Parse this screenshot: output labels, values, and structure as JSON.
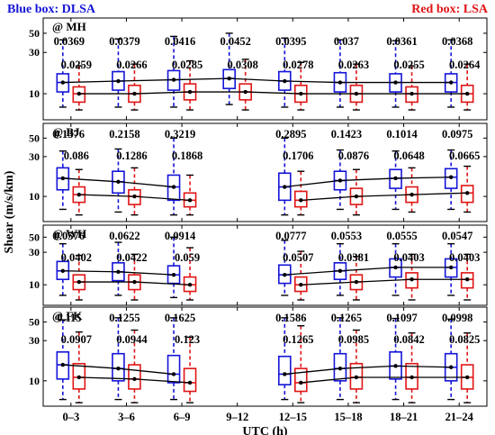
{
  "header": {
    "blue_label": "Blue box: DLSA",
    "red_label": "Red box: LSA"
  },
  "colors": {
    "blue": "#1515d8",
    "red": "#e01515",
    "line": "#000000"
  },
  "chart_data": {
    "type": "box",
    "ylabel": "Shear (m/s/km)",
    "xlabel": "UTC (h)",
    "categories": [
      "0–3",
      "3–6",
      "6–9",
      "9–12",
      "12–15",
      "15–18",
      "18–21",
      "21–24"
    ],
    "y_scale": "log",
    "y_ticks": [
      10,
      30,
      50
    ],
    "ylim": [
      5,
      75
    ],
    "series": [
      {
        "name": "DLSA",
        "color": "blue"
      },
      {
        "name": "LSA",
        "color": "red"
      }
    ],
    "panels": [
      {
        "label": "@ MH",
        "blue_labels": [
          "0.0369",
          "0.0379",
          "0.0416",
          "0.0452",
          "0.0395",
          "0.037",
          "0.0361",
          "0.0368"
        ],
        "red_labels": [
          "0.0259",
          "0.0266",
          "0.0285",
          "0.0308",
          "0.0278",
          "0.0263",
          "0.0255",
          "0.0264"
        ],
        "blue": [
          {
            "wl": 7,
            "q1": 10.5,
            "med": 13.5,
            "q3": 17,
            "wh": 42
          },
          {
            "wl": 7,
            "q1": 11,
            "med": 14,
            "q3": 18,
            "wh": 43
          },
          {
            "wl": 7,
            "q1": 11,
            "med": 14.5,
            "q3": 18.5,
            "wh": 46
          },
          {
            "wl": 7.5,
            "q1": 11.5,
            "med": 15,
            "q3": 19,
            "wh": 50
          },
          {
            "wl": 7,
            "q1": 11,
            "med": 14,
            "q3": 18,
            "wh": 44
          },
          {
            "wl": 7,
            "q1": 10.5,
            "med": 13.5,
            "q3": 17.5,
            "wh": 42
          },
          {
            "wl": 7,
            "q1": 10.5,
            "med": 13.5,
            "q3": 17,
            "wh": 41
          },
          {
            "wl": 7,
            "q1": 10.5,
            "med": 13.5,
            "q3": 17,
            "wh": 42
          }
        ],
        "red": [
          {
            "wl": 6.5,
            "q1": 8,
            "med": 10,
            "q3": 12,
            "wh": 21
          },
          {
            "wl": 6.5,
            "q1": 8,
            "med": 10,
            "q3": 12.5,
            "wh": 22
          },
          {
            "wl": 6.5,
            "q1": 8.5,
            "med": 10.5,
            "q3": 13,
            "wh": 24
          },
          {
            "wl": 6.5,
            "q1": 8.5,
            "med": 10.5,
            "q3": 13,
            "wh": 25
          },
          {
            "wl": 6.5,
            "q1": 8,
            "med": 10,
            "q3": 12.5,
            "wh": 23
          },
          {
            "wl": 6.5,
            "q1": 8,
            "med": 10,
            "q3": 12.5,
            "wh": 22
          },
          {
            "wl": 6.5,
            "q1": 8,
            "med": 10,
            "q3": 12,
            "wh": 21
          },
          {
            "wl": 6.5,
            "q1": 8,
            "med": 10,
            "q3": 12.5,
            "wh": 22
          }
        ]
      },
      {
        "label": "@ BJ",
        "blue_labels": [
          "0.1376",
          "0.2158",
          "0.3219",
          "",
          "0.2895",
          "0.1423",
          "0.1014",
          "0.0975"
        ],
        "red_labels": [
          "0.086",
          "0.1286",
          "0.1868",
          "",
          "0.1706",
          "0.0876",
          "0.0648",
          "0.0665"
        ],
        "blue": [
          {
            "wl": 7,
            "q1": 12,
            "med": 16.5,
            "q3": 22,
            "wh": 35
          },
          {
            "wl": 6.5,
            "q1": 11,
            "med": 15,
            "q3": 20,
            "wh": 37
          },
          {
            "wl": 6,
            "q1": 9,
            "med": 13,
            "q3": 18,
            "wh": 50
          },
          null,
          {
            "wl": 6,
            "q1": 9,
            "med": 13,
            "q3": 19,
            "wh": 50
          },
          {
            "wl": 7,
            "q1": 12,
            "med": 15.5,
            "q3": 20,
            "wh": 36
          },
          {
            "wl": 7,
            "q1": 12.5,
            "med": 16.5,
            "q3": 21,
            "wh": 35
          },
          {
            "wl": 7,
            "q1": 12.5,
            "med": 17,
            "q3": 21.5,
            "wh": 36
          }
        ],
        "red": [
          {
            "wl": 6,
            "q1": 8.5,
            "med": 10.5,
            "q3": 13,
            "wh": 21
          },
          {
            "wl": 6,
            "q1": 8,
            "med": 10,
            "q3": 12,
            "wh": 22
          },
          {
            "wl": 6,
            "q1": 7.5,
            "med": 9,
            "q3": 11,
            "wh": 18
          },
          null,
          {
            "wl": 6,
            "q1": 7.5,
            "med": 9,
            "q3": 11.5,
            "wh": 20
          },
          {
            "wl": 6,
            "q1": 8,
            "med": 10,
            "q3": 12.5,
            "wh": 21
          },
          {
            "wl": 6.5,
            "q1": 8.5,
            "med": 10.5,
            "q3": 13,
            "wh": 22
          },
          {
            "wl": 6.5,
            "q1": 8.5,
            "med": 11,
            "q3": 13.5,
            "wh": 23
          }
        ]
      },
      {
        "label": "@ WH",
        "blue_labels": [
          "0.0576",
          "0.0622",
          "0.0914",
          "",
          "0.0777",
          "0.0553",
          "0.0555",
          "0.0547"
        ],
        "red_labels": [
          "0.0402",
          "0.0422",
          "0.059",
          "",
          "0.0507",
          "0.0381",
          "0.0403",
          "0.0403"
        ],
        "blue": [
          {
            "wl": 7,
            "q1": 12,
            "med": 16,
            "q3": 22,
            "wh": 40
          },
          {
            "wl": 7,
            "q1": 11.5,
            "med": 15.5,
            "q3": 21,
            "wh": 42
          },
          {
            "wl": 6.5,
            "q1": 10.5,
            "med": 14,
            "q3": 19,
            "wh": 50
          },
          null,
          {
            "wl": 7,
            "q1": 10.5,
            "med": 14,
            "q3": 19.5,
            "wh": 45
          },
          {
            "wl": 7,
            "q1": 12,
            "med": 16,
            "q3": 21,
            "wh": 40
          },
          {
            "wl": 7,
            "q1": 13,
            "med": 18,
            "q3": 24,
            "wh": 40
          },
          {
            "wl": 7,
            "q1": 13,
            "med": 18,
            "q3": 24,
            "wh": 40
          }
        ],
        "red": [
          {
            "wl": 6,
            "q1": 8.5,
            "med": 11,
            "q3": 14,
            "wh": 27
          },
          {
            "wl": 6,
            "q1": 8.5,
            "med": 11,
            "q3": 14,
            "wh": 28
          },
          {
            "wl": 6,
            "q1": 8,
            "med": 10,
            "q3": 13,
            "wh": 35
          },
          null,
          {
            "wl": 6,
            "q1": 8,
            "med": 10,
            "q3": 13,
            "wh": 31
          },
          {
            "wl": 6,
            "q1": 8.5,
            "med": 11,
            "q3": 14,
            "wh": 26
          },
          {
            "wl": 6,
            "q1": 9,
            "med": 12,
            "q3": 15,
            "wh": 28
          },
          {
            "wl": 6,
            "q1": 9,
            "med": 12,
            "q3": 15,
            "wh": 28
          }
        ]
      },
      {
        "label": "@ FK",
        "blue_labels": [
          "0.115",
          "0.1255",
          "0.1625",
          "",
          "0.1586",
          "0.1265",
          "0.1097",
          "0.0998"
        ],
        "red_labels": [
          "0.0907",
          "0.0944",
          "0.123",
          "",
          "0.1265",
          "0.0985",
          "0.0842",
          "0.0825"
        ],
        "blue": [
          {
            "wl": 6,
            "q1": 10.5,
            "med": 15.5,
            "q3": 22,
            "wh": 53
          },
          {
            "wl": 6,
            "q1": 10,
            "med": 14,
            "q3": 21,
            "wh": 56
          },
          {
            "wl": 6,
            "q1": 9.5,
            "med": 12,
            "q3": 20,
            "wh": 56
          },
          null,
          {
            "wl": 6,
            "q1": 9,
            "med": 12,
            "q3": 19.5,
            "wh": 56
          },
          {
            "wl": 6,
            "q1": 10,
            "med": 14,
            "q3": 21,
            "wh": 56
          },
          {
            "wl": 6,
            "q1": 10.5,
            "med": 15,
            "q3": 22,
            "wh": 55
          },
          {
            "wl": 6,
            "q1": 10,
            "med": 14.5,
            "q3": 21,
            "wh": 54
          }
        ],
        "red": [
          {
            "wl": 5.5,
            "q1": 8,
            "med": 11,
            "q3": 16,
            "wh": 38
          },
          {
            "wl": 5.5,
            "q1": 8,
            "med": 10.5,
            "q3": 15.5,
            "wh": 40
          },
          {
            "wl": 5.5,
            "q1": 7.5,
            "med": 9.5,
            "q3": 14,
            "wh": 33
          },
          null,
          {
            "wl": 5.5,
            "q1": 7.5,
            "med": 9.5,
            "q3": 14,
            "wh": 45
          },
          {
            "wl": 5.5,
            "q1": 8,
            "med": 11,
            "q3": 16,
            "wh": 40
          },
          {
            "wl": 5.5,
            "q1": 8,
            "med": 11,
            "q3": 16,
            "wh": 37
          },
          {
            "wl": 5.5,
            "q1": 8,
            "med": 11,
            "q3": 15.5,
            "wh": 37
          }
        ]
      }
    ]
  }
}
